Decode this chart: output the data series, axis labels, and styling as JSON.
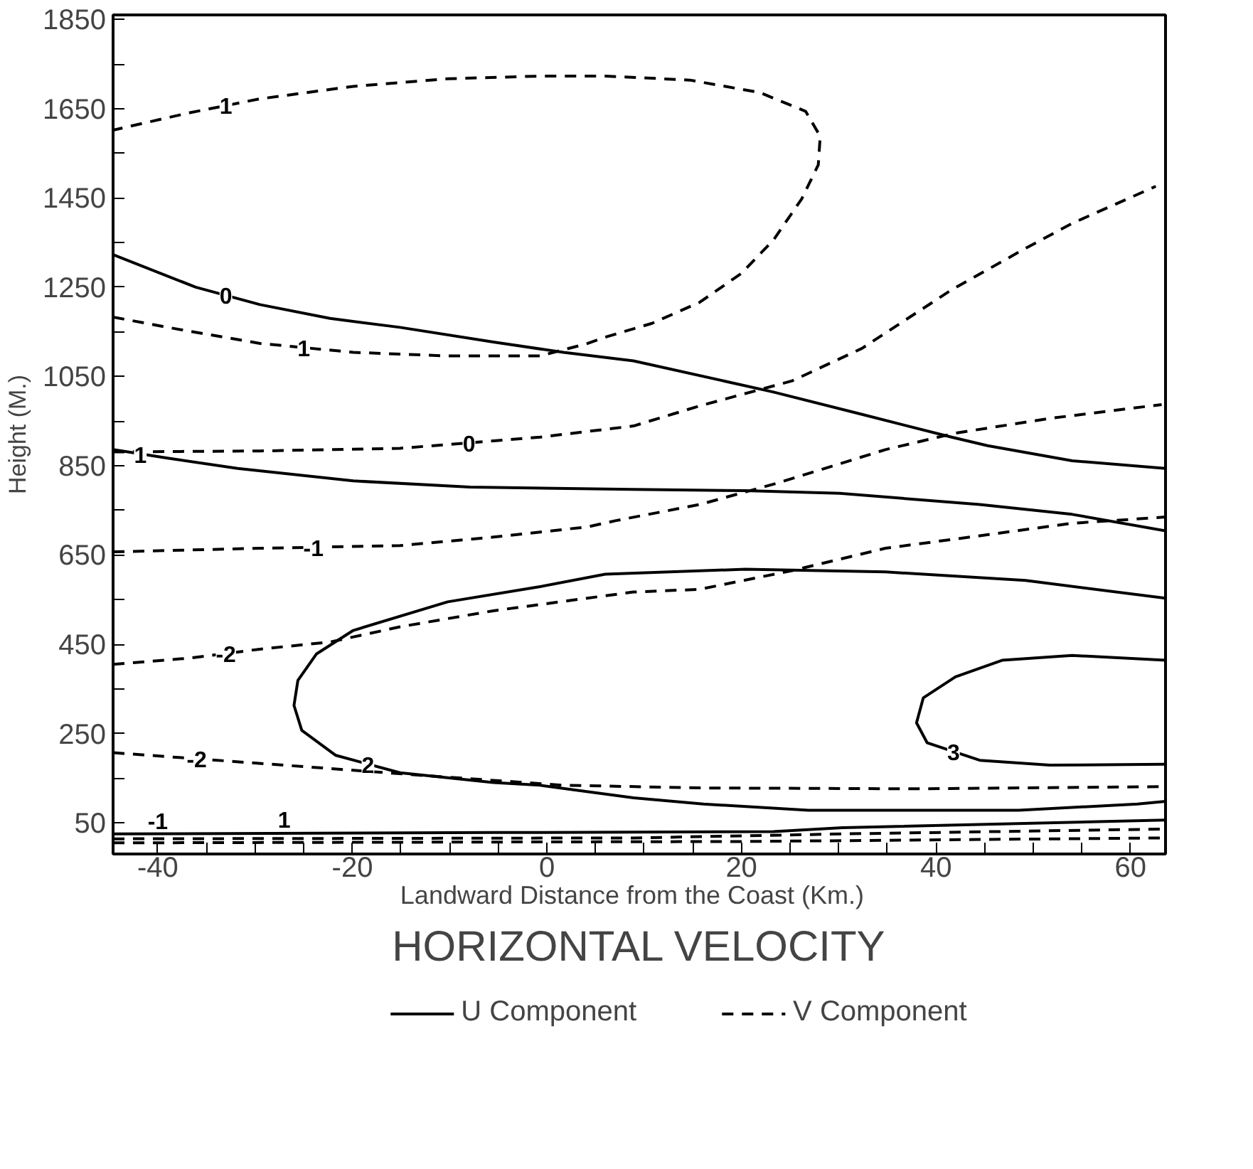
{
  "chart_data": {
    "type": "line",
    "title": "HORIZONTAL VELOCITY",
    "xlabel": "Landward Distance from the Coast   (Km.)",
    "ylabel": "Height (M.)",
    "xlim": [
      -44.6,
      63.6
    ],
    "ylim": [
      -20,
      1860
    ],
    "xticks": [
      -40,
      {
        "value": -35,
        "label": null
      },
      {
        "value": -30,
        "label": null
      },
      {
        "value": -25,
        "label": null
      },
      -20,
      {
        "value": -15,
        "label": null
      },
      {
        "value": -10,
        "label": null
      },
      {
        "value": -5,
        "label": null
      },
      0,
      {
        "value": 5,
        "label": null
      },
      {
        "value": 10,
        "label": null
      },
      {
        "value": 15,
        "label": null
      },
      20,
      {
        "value": 25,
        "label": null
      },
      {
        "value": 30,
        "label": null
      },
      {
        "value": 35,
        "label": null
      },
      40,
      {
        "value": 45,
        "label": null
      },
      {
        "value": 50,
        "label": null
      },
      {
        "value": 55,
        "label": null
      },
      60
    ],
    "yticks": [
      50,
      {
        "value": 150,
        "label": null
      },
      250,
      {
        "value": 350,
        "label": null
      },
      450,
      {
        "value": 550,
        "label": null
      },
      650,
      {
        "value": 750,
        "label": null
      },
      850,
      {
        "value": 950,
        "label": null
      },
      1050,
      {
        "value": 1150,
        "label": null
      },
      1250,
      {
        "value": 1350,
        "label": null
      },
      1450,
      {
        "value": 1550,
        "label": null
      },
      1650,
      {
        "value": 1750,
        "label": null
      },
      1850
    ],
    "grid": false,
    "legend": "bottom",
    "series": [
      {
        "name": "U Component",
        "color": "#000000",
        "line_style": "solid",
        "x": [
          -44.6,
          -36.1,
          -29.5,
          -22.3,
          -15.1,
          -5.5,
          1.7,
          8.9,
          23.3,
          32.4,
          41.6,
          45.3,
          54,
          63.6
        ],
        "values": [
          1323,
          1250,
          1211,
          1180,
          1160,
          1127,
          1104,
          1085,
          1015,
          965,
          914,
          895,
          861,
          844
        ]
      },
      {
        "color": "#000000",
        "line_style": "solid",
        "x": [
          -44.6,
          -39,
          -31.8,
          -19.9,
          -7.9,
          8.9,
          20.4,
          30.1,
          44.5,
          54,
          63.6
        ],
        "values": [
          886,
          867,
          844,
          816,
          802,
          797,
          794,
          788,
          763,
          741,
          704
        ]
      },
      {
        "color": "#000000",
        "line_style": "solid",
        "x": [
          63.6,
          49.2,
          34.8,
          20.4,
          6,
          -0.7,
          -10.2,
          -19.9,
          -23.7,
          -25.6,
          -26,
          -25.2,
          -21.7,
          -15.1,
          -5.5,
          -0.7,
          8.9,
          16.1,
          26.9,
          37.7,
          48.5,
          60.7,
          63.6
        ],
        "values": [
          553,
          593,
          612,
          618,
          607,
          579,
          545,
          481,
          428,
          369,
          313,
          257,
          201,
          162,
          140,
          134,
          106,
          92,
          78,
          78,
          78,
          92,
          98
        ]
      },
      {
        "color": "#000000",
        "line_style": "solid",
        "x": [
          63.6,
          54,
          46.8,
          42,
          38.7,
          38,
          39.1,
          44.5,
          51.7,
          63.6
        ],
        "values": [
          414,
          425,
          414,
          377,
          330,
          274,
          229,
          190,
          179,
          181
        ]
      },
      {
        "color": "#000000",
        "line_style": "solid",
        "x": [
          -44.6,
          -5.5,
          23.3,
          30.4,
          63.6
        ],
        "values": [
          25,
          28,
          30,
          39,
          56
        ]
      },
      {
        "name": "V Component",
        "color": "#000000",
        "line_style": "dashed",
        "x": [
          -44.6,
          -39,
          -29.5,
          -19.9,
          -10.2,
          -0.7,
          4.2,
          6,
          10.8,
          15.7,
          20,
          23.3,
          26.2,
          27.9,
          28.1,
          26.6,
          21.9,
          14.7,
          6,
          -0.7,
          -10.2,
          -19.9,
          -29.5,
          -36.7,
          -44.6
        ],
        "values": [
          1183,
          1160,
          1124,
          1104,
          1096,
          1096,
          1124,
          1138,
          1169,
          1216,
          1281,
          1356,
          1448,
          1524,
          1588,
          1644,
          1686,
          1714,
          1723,
          1723,
          1717,
          1700,
          1672,
          1641,
          1602
        ]
      },
      {
        "color": "#000000",
        "line_style": "dashed",
        "x": [
          -44.6,
          -29.5,
          -15.1,
          -0.7,
          8.9,
          15.7,
          25.2,
          32.4,
          41.6,
          49.2,
          54,
          62.6
        ],
        "values": [
          881,
          883,
          889,
          914,
          939,
          984,
          1040,
          1113,
          1244,
          1337,
          1393,
          1476
        ]
      },
      {
        "color": "#000000",
        "line_style": "dashed",
        "x": [
          -44.6,
          -29.5,
          -15.1,
          -5.5,
          4.2,
          7.1,
          15.7,
          23.7,
          34.8,
          42,
          51.7,
          63.2
        ],
        "values": [
          657,
          665,
          671,
          690,
          713,
          727,
          763,
          811,
          886,
          923,
          956,
          987
        ]
      },
      {
        "color": "#000000",
        "line_style": "dashed",
        "x": [
          -44.6,
          -36.7,
          -29.5,
          -22.3,
          -15.1,
          -5.5,
          8.9,
          15.7,
          25.2,
          34.8,
          44.5,
          54,
          63.6
        ],
        "values": [
          405,
          419,
          439,
          455,
          489,
          525,
          567,
          573,
          615,
          665,
          693,
          721,
          735
        ]
      },
      {
        "color": "#000000",
        "line_style": "dashed",
        "x": [
          -44.6,
          -27,
          -12.7,
          1.7,
          16.1,
          37.7,
          63.6
        ],
        "values": [
          207,
          179,
          156,
          134,
          128,
          126,
          131
        ]
      },
      {
        "color": "#000000",
        "line_style": "dashed",
        "x": [
          -44.6,
          8.9,
          30.4,
          63.6
        ],
        "values": [
          14,
          16,
          25,
          36
        ]
      },
      {
        "color": "#000000",
        "line_style": "dashed",
        "x": [
          -44.6,
          20,
          63.6
        ],
        "values": [
          5,
          8,
          16
        ]
      }
    ],
    "annotations": [
      {
        "text": "1",
        "x": -33,
        "y": 1657
      },
      {
        "text": "0",
        "x": -33,
        "y": 1233
      },
      {
        "text": "1",
        "x": -25,
        "y": 1115
      },
      {
        "text": "0",
        "x": -8,
        "y": 901
      },
      {
        "text": "1",
        "x": -41.8,
        "y": 876
      },
      {
        "text": "-1",
        "x": -24,
        "y": 667
      },
      {
        "text": "-2",
        "x": -33,
        "y": 429
      },
      {
        "text": "2",
        "x": -18.4,
        "y": 181
      },
      {
        "text": "-2",
        "x": -36,
        "y": 193
      },
      {
        "text": "3",
        "x": 41.8,
        "y": 210
      },
      {
        "text": "-1",
        "x": -40,
        "y": 55
      },
      {
        "text": "1",
        "x": -27,
        "y": 58
      }
    ]
  }
}
